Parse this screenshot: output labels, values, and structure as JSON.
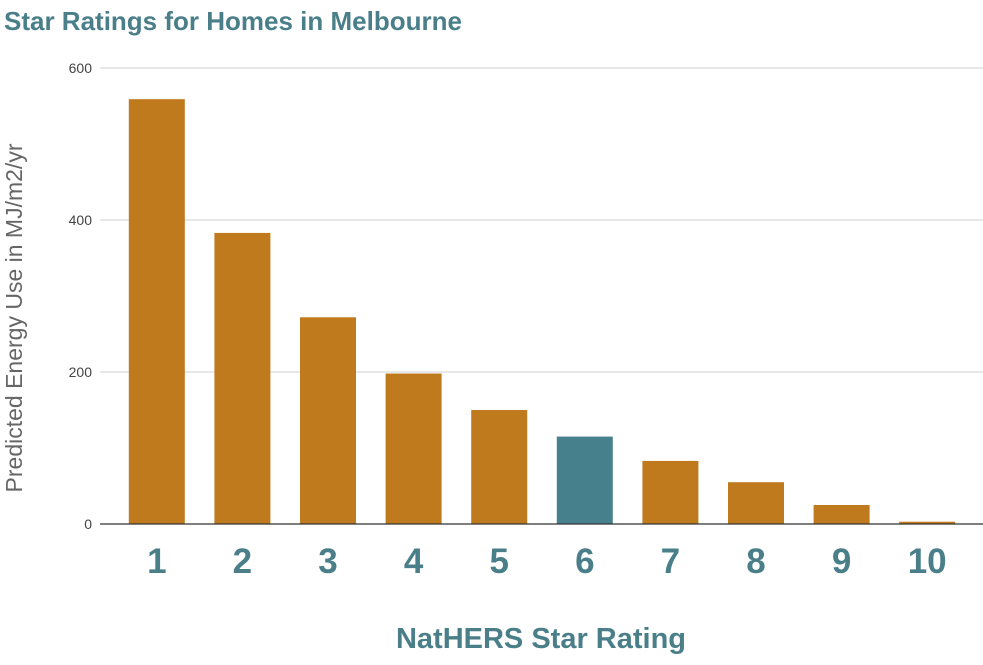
{
  "chart_data": {
    "type": "bar",
    "title": "Star Ratings for Homes in Melbourne",
    "xlabel": "NatHERS Star Rating",
    "ylabel": "Predicted Energy Use in MJ/m2/yr",
    "categories": [
      "1",
      "2",
      "3",
      "4",
      "5",
      "6",
      "7",
      "8",
      "9",
      "10"
    ],
    "values": [
      559,
      383,
      272,
      198,
      150,
      115,
      83,
      55,
      25,
      3
    ],
    "ylim": [
      0,
      600
    ],
    "yticks": [
      0,
      200,
      400,
      600
    ],
    "ytick_labels": [
      "0",
      "200",
      "400",
      "600"
    ],
    "grid": true,
    "legend": "none",
    "colors": {
      "bar": "#c07a1e",
      "highlight": "#45808c",
      "text": "#4a7f8a"
    },
    "highlight_category": "6"
  }
}
